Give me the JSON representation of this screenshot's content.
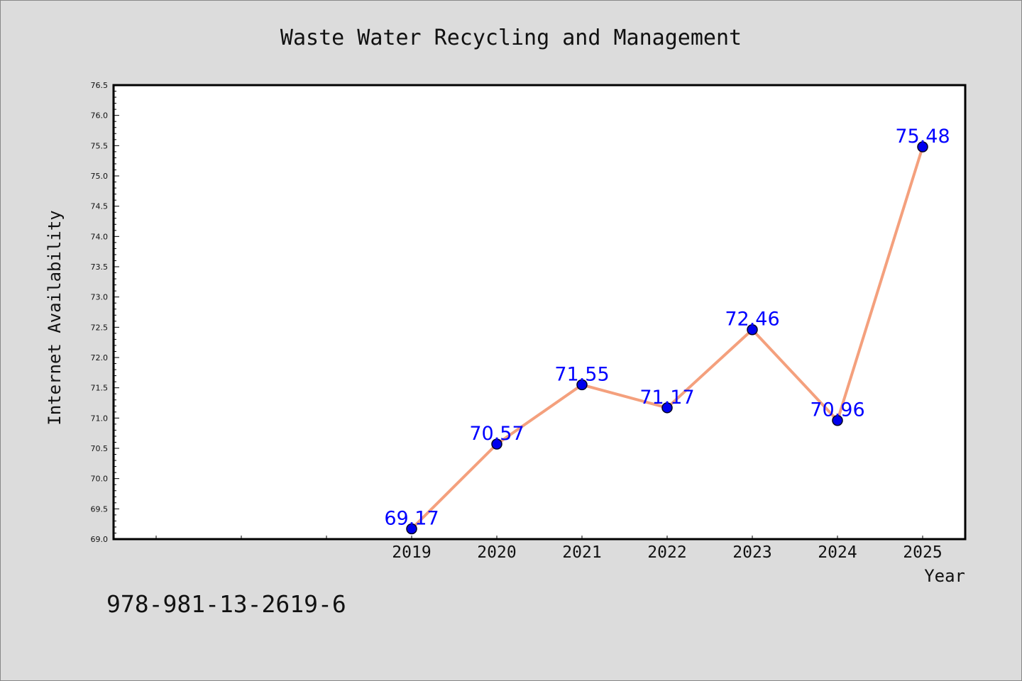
{
  "chart_data": {
    "type": "line",
    "title": "Waste Water Recycling and Management",
    "xlabel": "Year",
    "ylabel": "Internet Availability",
    "categories": [
      "2019",
      "2020",
      "2021",
      "2022",
      "2023",
      "2024",
      "2025"
    ],
    "series": [
      {
        "values": [
          69.17,
          70.57,
          71.55,
          71.17,
          72.46,
          70.96,
          75.48
        ]
      }
    ],
    "data_labels": [
      "69.17",
      "70.57",
      "71.55",
      "71.17",
      "72.46",
      "70.96",
      "75.48"
    ],
    "ylim": [
      69.0,
      76.5
    ],
    "yticks": [
      "69.0",
      "69.5",
      "70.0",
      "70.5",
      "71.0",
      "71.5",
      "72.0",
      "72.5",
      "73.0",
      "73.5",
      "74.0",
      "74.5",
      "75.0",
      "75.5",
      "76.0",
      "76.5"
    ],
    "grid": false,
    "colors": {
      "line": "#f4a07d",
      "marker": "#0000ee",
      "label": "#0000ff",
      "background": "#dcdcdc",
      "plot_background": "#ffffff"
    }
  },
  "footer": {
    "isbn": "978-981-13-2619-6"
  }
}
